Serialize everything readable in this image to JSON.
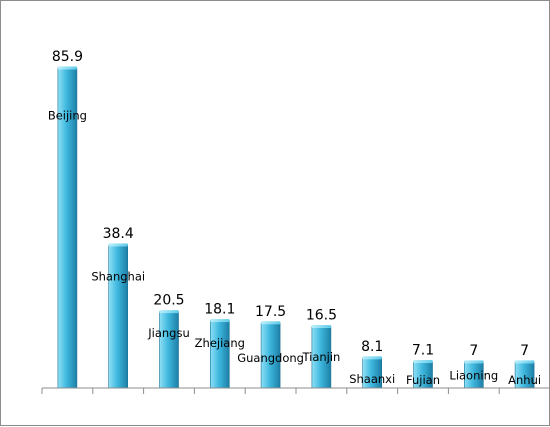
{
  "chart_data": {
    "type": "bar",
    "categories": [
      "Beijing",
      "Shanghai",
      "Jiangsu",
      "Zhejiang",
      "Guangdong",
      "Tianjin",
      "Shaanxi",
      "Fujian",
      "Liaoning",
      "Anhui"
    ],
    "values": [
      85.9,
      38.4,
      20.5,
      18.1,
      17.5,
      16.5,
      8.1,
      7.1,
      7,
      7
    ],
    "value_labels": [
      "85.9",
      "38.4",
      "20.5",
      "18.1",
      "17.5",
      "16.5",
      "8.1",
      "7.1",
      "7",
      "7"
    ],
    "ylim": [
      0,
      85.9
    ],
    "grid": false,
    "legend": "none",
    "colors": {
      "bar_light": "#8fe0f5",
      "bar_mid": "#3fb8df",
      "bar_dark": "#1d7fa6",
      "axis": "#8c8c8c"
    }
  }
}
